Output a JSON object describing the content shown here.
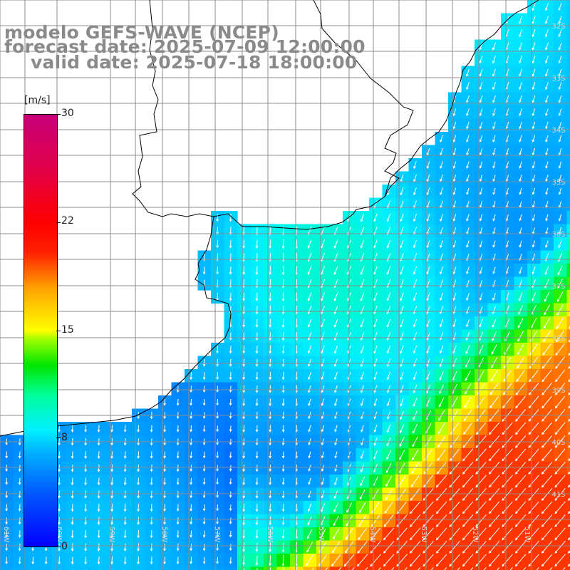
{
  "title": {
    "line1": "modelo GEFS-WAVE (NCEP)",
    "line2": "forecast date: 2025-07-09 12:00:00",
    "line3": "valid date: 2025-07-18 18:00:00"
  },
  "colorbar": {
    "unit": "[m/s]",
    "ticks": [
      {
        "label": "30",
        "value": 30
      },
      {
        "label": "22",
        "value": 22
      },
      {
        "label": "15",
        "value": 15
      },
      {
        "label": "8",
        "value": 8
      },
      {
        "label": "0",
        "value": 0
      }
    ],
    "min": 0,
    "max": 30
  },
  "lat_labels": [
    "32S",
    "33S",
    "34S",
    "35S",
    "36S",
    "37S",
    "38S",
    "39S",
    "40S",
    "41S"
  ],
  "lon_labels": [
    "61W",
    "60W",
    "59W",
    "58W",
    "57W",
    "56W",
    "55W",
    "54W",
    "53W",
    "52W",
    "51W"
  ],
  "colors": {
    "land": "#ffffff",
    "coast": "#000000",
    "grid": "#8c8c8c",
    "arrow": "#ffffff",
    "title_text": "#8a8a8a"
  }
}
